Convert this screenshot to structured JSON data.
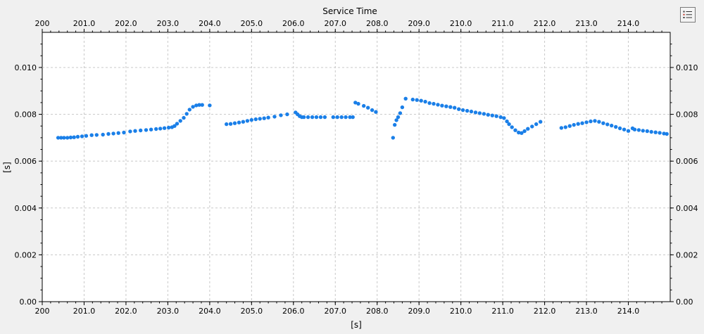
{
  "toolbar": {
    "legend_icon": "legend-list-icon"
  },
  "colors": {
    "series": "#1a7fe8",
    "plot_bg": "#ffffff",
    "grid": "#c8c8c8",
    "axis": "#000000"
  },
  "chart_data": {
    "type": "scatter",
    "title": "Service Time",
    "xlabel": "[s]",
    "ylabel": "[s]",
    "xlim": [
      200,
      215
    ],
    "ylim": [
      0,
      0.0115
    ],
    "grid": true,
    "x_ticks": [
      {
        "value": 200.0,
        "label": "200"
      },
      {
        "value": 201.0,
        "label": "201.0"
      },
      {
        "value": 202.0,
        "label": "202.0"
      },
      {
        "value": 203.0,
        "label": "203.0"
      },
      {
        "value": 204.0,
        "label": "204.0"
      },
      {
        "value": 205.0,
        "label": "205.0"
      },
      {
        "value": 206.0,
        "label": "206.0"
      },
      {
        "value": 207.0,
        "label": "207.0"
      },
      {
        "value": 208.0,
        "label": "208.0"
      },
      {
        "value": 209.0,
        "label": "209.0"
      },
      {
        "value": 210.0,
        "label": "210.0"
      },
      {
        "value": 211.0,
        "label": "211.0"
      },
      {
        "value": 212.0,
        "label": "212.0"
      },
      {
        "value": 213.0,
        "label": "213.0"
      },
      {
        "value": 214.0,
        "label": "214.0"
      }
    ],
    "y_ticks": [
      {
        "value": 0.0,
        "label": "0.00"
      },
      {
        "value": 0.002,
        "label": "0.002"
      },
      {
        "value": 0.004,
        "label": "0.004"
      },
      {
        "value": 0.006,
        "label": "0.006"
      },
      {
        "value": 0.008,
        "label": "0.008"
      },
      {
        "value": 0.01,
        "label": "0.010"
      }
    ],
    "series": [
      {
        "values": [
          [
            200.38,
            0.007
          ],
          [
            200.45,
            0.007
          ],
          [
            200.52,
            0.007
          ],
          [
            200.6,
            0.007
          ],
          [
            200.68,
            0.00701
          ],
          [
            200.76,
            0.00702
          ],
          [
            200.85,
            0.00704
          ],
          [
            200.95,
            0.00706
          ],
          [
            201.05,
            0.00708
          ],
          [
            201.18,
            0.00711
          ],
          [
            201.3,
            0.00712
          ],
          [
            201.45,
            0.00713
          ],
          [
            201.58,
            0.00716
          ],
          [
            201.7,
            0.00718
          ],
          [
            201.82,
            0.0072
          ],
          [
            201.95,
            0.00722
          ],
          [
            202.1,
            0.00727
          ],
          [
            202.22,
            0.00729
          ],
          [
            202.35,
            0.00731
          ],
          [
            202.48,
            0.00733
          ],
          [
            202.6,
            0.00735
          ],
          [
            202.72,
            0.00737
          ],
          [
            202.82,
            0.00739
          ],
          [
            202.92,
            0.00741
          ],
          [
            203.02,
            0.00743
          ],
          [
            203.1,
            0.00745
          ],
          [
            203.16,
            0.0075
          ],
          [
            203.22,
            0.0076
          ],
          [
            203.3,
            0.00772
          ],
          [
            203.38,
            0.00785
          ],
          [
            203.45,
            0.00802
          ],
          [
            203.52,
            0.0082
          ],
          [
            203.6,
            0.00832
          ],
          [
            203.68,
            0.00838
          ],
          [
            203.75,
            0.0084
          ],
          [
            203.82,
            0.0084
          ],
          [
            204.0,
            0.00838
          ],
          [
            204.4,
            0.00758
          ],
          [
            204.5,
            0.00759
          ],
          [
            204.6,
            0.00762
          ],
          [
            204.7,
            0.00765
          ],
          [
            204.8,
            0.00768
          ],
          [
            204.9,
            0.00772
          ],
          [
            205.0,
            0.00776
          ],
          [
            205.1,
            0.00779
          ],
          [
            205.2,
            0.00781
          ],
          [
            205.3,
            0.00783
          ],
          [
            205.4,
            0.00786
          ],
          [
            205.55,
            0.0079
          ],
          [
            205.7,
            0.00796
          ],
          [
            205.85,
            0.008
          ],
          [
            206.05,
            0.00808
          ],
          [
            206.1,
            0.008
          ],
          [
            206.15,
            0.00792
          ],
          [
            206.2,
            0.00788
          ],
          [
            206.25,
            0.00788
          ],
          [
            206.35,
            0.00788
          ],
          [
            206.45,
            0.00788
          ],
          [
            206.55,
            0.00788
          ],
          [
            206.65,
            0.00788
          ],
          [
            206.75,
            0.00788
          ],
          [
            206.95,
            0.00788
          ],
          [
            207.05,
            0.00788
          ],
          [
            207.15,
            0.00788
          ],
          [
            207.25,
            0.00788
          ],
          [
            207.35,
            0.00788
          ],
          [
            207.42,
            0.00788
          ],
          [
            207.48,
            0.0085
          ],
          [
            207.55,
            0.00845
          ],
          [
            207.68,
            0.00836
          ],
          [
            207.78,
            0.00828
          ],
          [
            207.88,
            0.00818
          ],
          [
            207.97,
            0.0081
          ],
          [
            208.38,
            0.007
          ],
          [
            208.42,
            0.00755
          ],
          [
            208.46,
            0.00775
          ],
          [
            208.5,
            0.00788
          ],
          [
            208.55,
            0.00805
          ],
          [
            208.6,
            0.0083
          ],
          [
            208.68,
            0.00867
          ],
          [
            208.85,
            0.00863
          ],
          [
            208.95,
            0.00861
          ],
          [
            209.05,
            0.00858
          ],
          [
            209.15,
            0.00854
          ],
          [
            209.25,
            0.00848
          ],
          [
            209.35,
            0.00845
          ],
          [
            209.45,
            0.00841
          ],
          [
            209.55,
            0.00837
          ],
          [
            209.65,
            0.00834
          ],
          [
            209.75,
            0.00831
          ],
          [
            209.85,
            0.00828
          ],
          [
            209.95,
            0.00822
          ],
          [
            210.05,
            0.00818
          ],
          [
            210.15,
            0.00815
          ],
          [
            210.25,
            0.00812
          ],
          [
            210.35,
            0.00808
          ],
          [
            210.45,
            0.00805
          ],
          [
            210.55,
            0.00802
          ],
          [
            210.65,
            0.00798
          ],
          [
            210.75,
            0.00795
          ],
          [
            210.85,
            0.00792
          ],
          [
            210.95,
            0.00788
          ],
          [
            211.03,
            0.00784
          ],
          [
            211.1,
            0.0077
          ],
          [
            211.15,
            0.00758
          ],
          [
            211.22,
            0.00745
          ],
          [
            211.3,
            0.00732
          ],
          [
            211.38,
            0.00722
          ],
          [
            211.45,
            0.0072
          ],
          [
            211.52,
            0.00728
          ],
          [
            211.6,
            0.00738
          ],
          [
            211.7,
            0.00748
          ],
          [
            211.8,
            0.00758
          ],
          [
            211.9,
            0.00768
          ],
          [
            212.4,
            0.00742
          ],
          [
            212.5,
            0.00745
          ],
          [
            212.6,
            0.0075
          ],
          [
            212.7,
            0.00755
          ],
          [
            212.8,
            0.00759
          ],
          [
            212.9,
            0.00762
          ],
          [
            213.0,
            0.00766
          ],
          [
            213.1,
            0.0077
          ],
          [
            213.2,
            0.00772
          ],
          [
            213.3,
            0.00768
          ],
          [
            213.4,
            0.00762
          ],
          [
            213.5,
            0.00757
          ],
          [
            213.6,
            0.00752
          ],
          [
            213.7,
            0.00746
          ],
          [
            213.8,
            0.0074
          ],
          [
            213.9,
            0.00735
          ],
          [
            214.0,
            0.00729
          ],
          [
            214.1,
            0.0074
          ],
          [
            214.15,
            0.00735
          ],
          [
            214.25,
            0.00733
          ],
          [
            214.35,
            0.0073
          ],
          [
            214.45,
            0.00728
          ],
          [
            214.55,
            0.00725
          ],
          [
            214.65,
            0.00723
          ],
          [
            214.75,
            0.00721
          ],
          [
            214.85,
            0.00718
          ],
          [
            214.92,
            0.00716
          ]
        ]
      }
    ]
  }
}
